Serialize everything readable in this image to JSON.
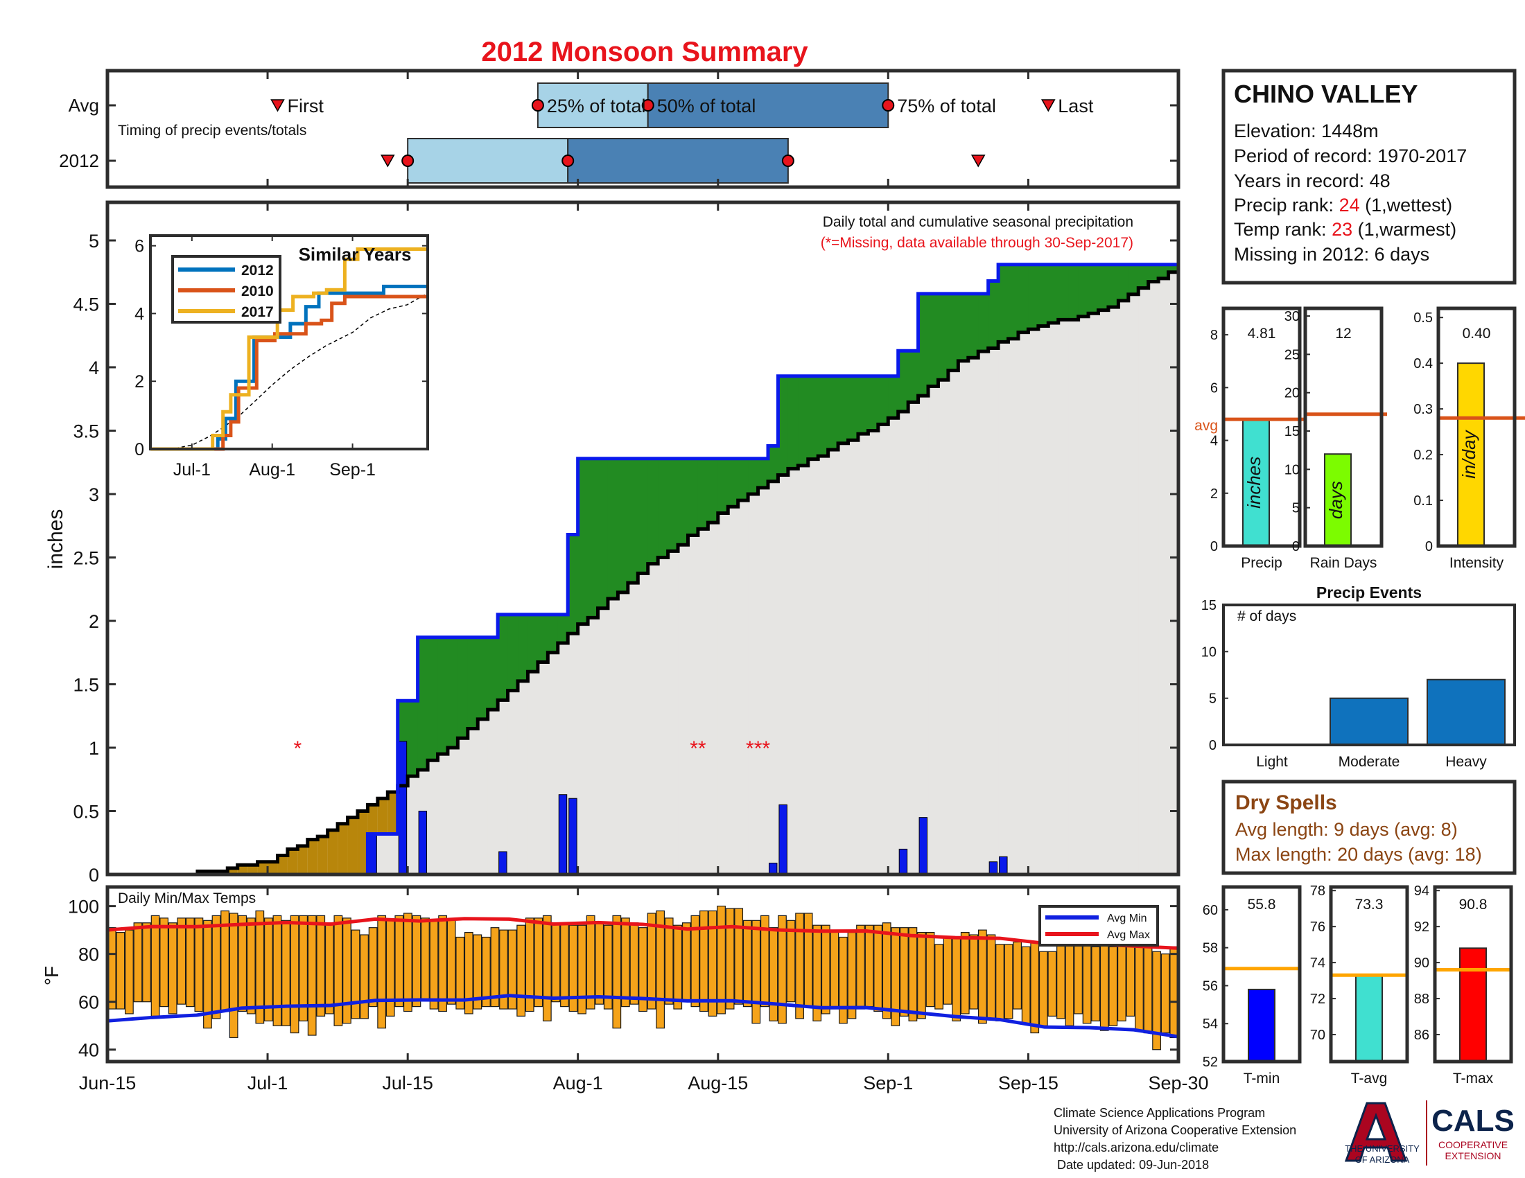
{
  "title": "2012 Monsoon Summary",
  "station": {
    "name": "CHINO VALLEY",
    "elevation": "Elevation: 1448m",
    "period": "Period of record: 1970-2017",
    "years": "Years in record: 48",
    "precip_rank_prefix": "Precip rank: ",
    "precip_rank_value": "24",
    "precip_rank_suffix": " (1,wettest)",
    "temp_rank_prefix": "Temp rank: ",
    "temp_rank_value": "23",
    "temp_rank_suffix": " (1,warmest)",
    "missing": "Missing in 2012: 6 days"
  },
  "colors": {
    "title": "#e8141c",
    "rank": "#e8141c",
    "dry": "#8b4513",
    "green": "#228b22",
    "brown": "#b8860b",
    "cum_fill": "#e6e5e3",
    "daily_bar": "#0a1aeb",
    "temp_bar": "#f5a31a",
    "avg_min": "#1020e0",
    "avg_max": "#e8141c",
    "light_box": "#a7d3e7",
    "dark_box": "#4a81b4",
    "event_bar": "#0f72bd",
    "precip_bar": "#40e0d0",
    "raindays_bar": "#7cfc00",
    "intensity_bar": "#ffd700",
    "tmin_bar": "#0000ff",
    "tavg_bar": "#40e0d0",
    "tmax_bar": "#ff0000",
    "avg_line": "#d95319",
    "temp_avg_line": "#ffa500",
    "s2012": "#0072bd",
    "s2010": "#d95319",
    "s2017": "#edb120"
  },
  "timing": {
    "row_labels": [
      "Avg",
      "2012"
    ],
    "caption": "Timing of precip events/totals",
    "avg": {
      "first": "Jul-2",
      "p25": "Jul-28",
      "p50": "Aug-8",
      "p75": "Sep-1",
      "last": "Sep-17"
    },
    "y2012": {
      "first": "Jul-13",
      "p25": "Jul-15",
      "p50": "Jul-31",
      "p75": "Aug-22",
      "last": "Sep-10"
    },
    "labels": {
      "first": "First",
      "p25": "25% of total",
      "p50": "50% of total",
      "p75": "75% of total",
      "last": "Last"
    }
  },
  "main": {
    "ylabel": "inches",
    "yticks": [
      "0",
      "0.5",
      "1",
      "1.5",
      "2",
      "2.5",
      "3",
      "3.5",
      "4",
      "4.5",
      "5"
    ],
    "xticks": [
      "Jun-15",
      "Jul-1",
      "Jul-15",
      "Aug-1",
      "Aug-15",
      "Sep-1",
      "Sep-15",
      "Sep-30"
    ],
    "note_line1": "Daily total and cumulative seasonal precipitation",
    "note_line2": "(*=Missing, data available through 30-Sep-2017)",
    "missing_marks": [
      {
        "date": "Jul-4",
        "text": "*"
      },
      {
        "date": "Aug-13",
        "text": "**"
      },
      {
        "date": "Aug-19",
        "text": "***"
      }
    ]
  },
  "inset": {
    "title": "Similar Years",
    "legend": [
      "2012",
      "2010",
      "2017"
    ],
    "yticks": [
      "0",
      "2",
      "4",
      "6"
    ],
    "xticks": [
      "Jul-1",
      "Aug-1",
      "Sep-1"
    ]
  },
  "side_bars": [
    {
      "name": "precip",
      "label": "Precip",
      "value": "4.81",
      "unit": "inches",
      "yticks": [
        "0",
        "2",
        "4",
        "6",
        "8"
      ],
      "avg_label": "avg"
    },
    {
      "name": "raindays",
      "label": "Rain Days",
      "value": "12",
      "unit": "days",
      "yticks": [
        "0",
        "5",
        "10",
        "15",
        "20",
        "25",
        "30"
      ]
    },
    {
      "name": "intensity",
      "label": "Intensity",
      "value": "0.40",
      "unit": "in/day",
      "yticks": [
        "0",
        "0.1",
        "0.2",
        "0.3",
        "0.4",
        "0.5"
      ]
    }
  ],
  "events": {
    "title": "Precip Events",
    "ylabel": "# of days",
    "yticks": [
      "0",
      "5",
      "10",
      "15"
    ],
    "categories": [
      "Light",
      "Moderate",
      "Heavy"
    ]
  },
  "dry": {
    "title": "Dry Spells",
    "avg_line": "Avg length: 9 days (avg: 8)",
    "max_line": "Max length: 20 days (avg: 18)"
  },
  "temps": {
    "title": "Daily Min/Max Temps",
    "ylabel": "°F",
    "yticks": [
      "40",
      "60",
      "80",
      "100"
    ],
    "legend": [
      "Avg Min",
      "Avg Max"
    ]
  },
  "temp_bars": [
    {
      "name": "tmin",
      "label": "T-min",
      "value": "55.8",
      "yticks": [
        "52",
        "54",
        "56",
        "58",
        "60"
      ]
    },
    {
      "name": "tavg",
      "label": "T-avg",
      "value": "73.3",
      "yticks": [
        "70",
        "72",
        "74",
        "76",
        "78"
      ]
    },
    {
      "name": "tmax",
      "label": "T-max",
      "value": "90.8",
      "yticks": [
        "86",
        "88",
        "90",
        "92",
        "94"
      ]
    }
  ],
  "footer": {
    "line1": "Climate Science Applications Program",
    "line2": "University of Arizona Cooperative Extension",
    "line3": "http://cals.arizona.edu/climate",
    "line4": " Date updated: 09-Jun-2018"
  },
  "logos": {
    "ua_line1": "THE UNIVERSITY",
    "ua_line2": "OF ARIZONA",
    "cals": "CALS",
    "coop1": "COOPERATIVE",
    "coop2": "EXTENSION"
  },
  "chart_data": [
    {
      "type": "area",
      "title": "Daily total and cumulative seasonal precipitation",
      "ylabel": "inches",
      "x_range": [
        "Jun-15",
        "Sep-30"
      ],
      "ylim": [
        0,
        5.3
      ],
      "cumulative_2012": [
        {
          "x": "Jun-15",
          "y": 0
        },
        {
          "x": "Jul-10",
          "y": 0
        },
        {
          "x": "Jul-11",
          "y": 0.32
        },
        {
          "x": "Jul-13",
          "y": 0.32
        },
        {
          "x": "Jul-14",
          "y": 1.37
        },
        {
          "x": "Jul-16",
          "y": 1.87
        },
        {
          "x": "Jul-24",
          "y": 2.05
        },
        {
          "x": "Jul-30",
          "y": 2.05
        },
        {
          "x": "Jul-31",
          "y": 2.68
        },
        {
          "x": "Aug-1",
          "y": 3.28
        },
        {
          "x": "Aug-20",
          "y": 3.38
        },
        {
          "x": "Aug-21",
          "y": 3.93
        },
        {
          "x": "Sep-2",
          "y": 4.13
        },
        {
          "x": "Sep-4",
          "y": 4.58
        },
        {
          "x": "Sep-11",
          "y": 4.68
        },
        {
          "x": "Sep-12",
          "y": 4.81
        },
        {
          "x": "Sep-30",
          "y": 4.81
        }
      ],
      "cumulative_avg": [
        {
          "x": "Jun-15",
          "y": 0
        },
        {
          "x": "Jun-25",
          "y": 0.03
        },
        {
          "x": "Jul-1",
          "y": 0.12
        },
        {
          "x": "Jul-8",
          "y": 0.4
        },
        {
          "x": "Jul-13",
          "y": 0.66
        },
        {
          "x": "Jul-15",
          "y": 0.78
        },
        {
          "x": "Jul-20",
          "y": 1.08
        },
        {
          "x": "Jul-25",
          "y": 1.45
        },
        {
          "x": "Aug-1",
          "y": 1.98
        },
        {
          "x": "Aug-8",
          "y": 2.45
        },
        {
          "x": "Aug-15",
          "y": 2.85
        },
        {
          "x": "Aug-22",
          "y": 3.2
        },
        {
          "x": "Sep-1",
          "y": 3.6
        },
        {
          "x": "Sep-8",
          "y": 4.05
        },
        {
          "x": "Sep-15",
          "y": 4.32
        },
        {
          "x": "Sep-22",
          "y": 4.45
        },
        {
          "x": "Sep-30",
          "y": 4.81
        }
      ],
      "daily_2012": [
        {
          "x": "Jul-11",
          "y": 0.32
        },
        {
          "x": "Jul-14",
          "y": 1.05
        },
        {
          "x": "Jul-16",
          "y": 0.5
        },
        {
          "x": "Jul-24",
          "y": 0.18
        },
        {
          "x": "Jul-30",
          "y": 0.63
        },
        {
          "x": "Jul-31",
          "y": 0.6
        },
        {
          "x": "Aug-20",
          "y": 0.09
        },
        {
          "x": "Aug-21",
          "y": 0.55
        },
        {
          "x": "Sep-2",
          "y": 0.2
        },
        {
          "x": "Sep-4",
          "y": 0.45
        },
        {
          "x": "Sep-11",
          "y": 0.1
        },
        {
          "x": "Sep-12",
          "y": 0.14
        }
      ]
    },
    {
      "type": "line",
      "title": "Similar Years",
      "ylim": [
        0,
        6
      ],
      "series": [
        {
          "name": "2012",
          "values": [
            [
              0,
              0
            ],
            [
              25,
              0
            ],
            [
              26,
              0.3
            ],
            [
              29,
              0.9
            ],
            [
              33,
              2.0
            ],
            [
              37,
              2.0
            ],
            [
              40,
              3.3
            ],
            [
              46,
              3.3
            ],
            [
              47,
              3.3
            ],
            [
              52,
              3.3
            ],
            [
              54,
              3.7
            ],
            [
              60,
              4.2
            ],
            [
              65,
              4.6
            ],
            [
              90,
              4.8
            ],
            [
              107,
              4.8
            ]
          ]
        },
        {
          "name": "2010",
          "values": [
            [
              0,
              0
            ],
            [
              25,
              0
            ],
            [
              28,
              0.4
            ],
            [
              31,
              0.8
            ],
            [
              34,
              1.8
            ],
            [
              39,
              1.8
            ],
            [
              41,
              3.2
            ],
            [
              48,
              3.4
            ],
            [
              56,
              3.4
            ],
            [
              57,
              3.4
            ],
            [
              60,
              3.7
            ],
            [
              66,
              3.8
            ],
            [
              70,
              4.3
            ],
            [
              75,
              4.5
            ],
            [
              107,
              4.5
            ]
          ]
        },
        {
          "name": "2017",
          "values": [
            [
              0,
              0
            ],
            [
              22,
              0
            ],
            [
              24,
              0.4
            ],
            [
              28,
              1.1
            ],
            [
              31,
              1.6
            ],
            [
              34,
              1.6
            ],
            [
              38,
              3.3
            ],
            [
              44,
              3.3
            ],
            [
              49,
              4.1
            ],
            [
              55,
              4.5
            ],
            [
              63,
              4.6
            ],
            [
              68,
              4.7
            ],
            [
              75,
              5.6
            ],
            [
              80,
              5.9
            ],
            [
              107,
              5.9
            ]
          ]
        }
      ]
    },
    {
      "type": "bar",
      "title": "Precip",
      "categories": [
        "Precip",
        "Rain Days",
        "Intensity"
      ],
      "values": [
        4.81,
        12,
        0.4
      ],
      "averages": [
        4.8,
        17.2,
        0.28
      ],
      "ylims": [
        [
          0,
          9
        ],
        [
          0,
          31
        ],
        [
          0,
          0.52
        ]
      ]
    },
    {
      "type": "bar",
      "title": "Precip Events",
      "ylabel": "# of days",
      "categories": [
        "Light",
        "Moderate",
        "Heavy"
      ],
      "values": [
        0,
        5,
        7
      ],
      "ylim": [
        0,
        15
      ]
    },
    {
      "type": "bar",
      "title": "Daily Min/Max Temps",
      "ylabel": "°F",
      "ylim": [
        35,
        108
      ],
      "start": "Jun-15",
      "max": [
        91,
        89,
        90,
        93,
        93,
        96,
        95,
        93,
        95,
        95,
        95,
        94,
        96,
        98,
        97,
        96,
        95,
        98,
        95,
        96,
        94,
        96,
        96,
        96,
        96,
        93,
        96,
        95,
        90,
        88,
        91,
        96,
        94,
        96,
        97,
        96,
        95,
        94,
        96,
        94,
        87,
        89,
        88,
        87,
        91,
        90,
        90,
        92,
        95,
        95,
        96,
        93,
        93,
        92,
        92,
        96,
        93,
        92,
        96,
        95,
        93,
        91,
        97,
        98,
        95,
        92,
        93,
        96,
        98,
        98,
        100,
        99,
        99,
        94,
        94,
        96,
        91,
        96,
        94,
        97,
        97,
        92,
        92,
        90,
        87,
        89,
        92,
        92,
        92,
        93,
        91,
        91,
        91,
        89,
        89,
        84,
        87,
        87,
        89,
        88,
        90,
        88,
        84,
        84,
        85,
        83,
        85,
        81,
        81,
        86,
        89,
        85,
        86,
        83,
        87,
        83,
        86,
        87,
        86,
        85,
        81,
        80,
        83
      ],
      "min": [
        57,
        57,
        55,
        60,
        60,
        54,
        58,
        55,
        59,
        58,
        56,
        49,
        53,
        56,
        45,
        56,
        55,
        51,
        52,
        50,
        50,
        47,
        52,
        46,
        54,
        55,
        50,
        51,
        53,
        53,
        58,
        49,
        54,
        58,
        56,
        58,
        61,
        57,
        56,
        59,
        57,
        55,
        57,
        58,
        58,
        57,
        57,
        54,
        56,
        58,
        52,
        60,
        58,
        56,
        55,
        57,
        59,
        57,
        49,
        58,
        59,
        56,
        57,
        49,
        59,
        57,
        60,
        58,
        56,
        54,
        55,
        57,
        59,
        58,
        51,
        58,
        52,
        51,
        60,
        53,
        58,
        52,
        55,
        57,
        51,
        53,
        57,
        58,
        56,
        53,
        50,
        54,
        52,
        53,
        58,
        57,
        59,
        52,
        55,
        57,
        51,
        53,
        52,
        53,
        57,
        51,
        47,
        50,
        54,
        53,
        50,
        55,
        51,
        52,
        48,
        50,
        52,
        54,
        48,
        47,
        40,
        47,
        45
      ],
      "avg_max": [
        90,
        91,
        92,
        92,
        93,
        93,
        94,
        94,
        95,
        94,
        93,
        93,
        92,
        91,
        91,
        90,
        90,
        89,
        88,
        87,
        86,
        85,
        84,
        83,
        83
      ],
      "avg_min": [
        52,
        53,
        55,
        57,
        58,
        59,
        60,
        61,
        61,
        62,
        62,
        62,
        61,
        61,
        60,
        59,
        58,
        57,
        56,
        54,
        52,
        50,
        49,
        48,
        46
      ]
    },
    {
      "type": "bar",
      "title": "Temperatures",
      "categories": [
        "T-min",
        "T-avg",
        "T-max"
      ],
      "values": [
        55.8,
        73.3,
        90.8
      ],
      "averages": [
        56.9,
        73.3,
        89.6
      ],
      "ylims": [
        [
          52,
          61.2
        ],
        [
          68.5,
          78.2
        ],
        [
          84.5,
          94.2
        ]
      ]
    }
  ]
}
